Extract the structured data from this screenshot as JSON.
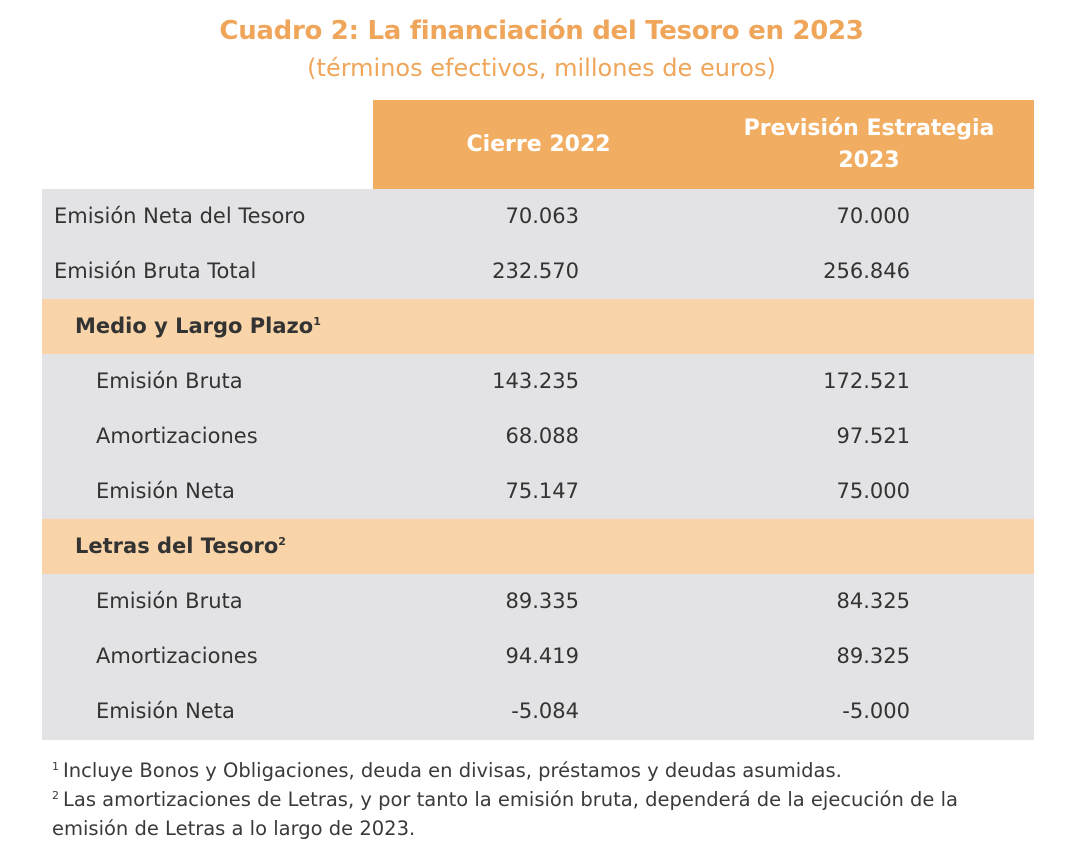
{
  "title": "Cuadro 2: La financiación del Tesoro en 2023",
  "subtitle": "(términos efectivos, millones de euros)",
  "table": {
    "columns": [
      "Cierre 2022",
      "Previsión Estrategia 2023"
    ],
    "rows": [
      {
        "label": "Emisión Neta del Tesoro",
        "v1": "70.063",
        "v2": "70.000"
      },
      {
        "label": "Emisión Bruta Total",
        "v1": "232.570",
        "v2": "256.846"
      },
      {
        "label": "Medio y Largo Plazo",
        "sup": "1"
      },
      {
        "label": "Emisión Bruta",
        "v1": "143.235",
        "v2": "172.521"
      },
      {
        "label": "Amortizaciones",
        "v1": "68.088",
        "v2": "97.521"
      },
      {
        "label": "Emisión Neta",
        "v1": "75.147",
        "v2": "75.000"
      },
      {
        "label": "Letras del Tesoro",
        "sup": "2"
      },
      {
        "label": "Emisión Bruta",
        "v1": "89.335",
        "v2": "84.325"
      },
      {
        "label": "Amortizaciones",
        "v1": "94.419",
        "v2": "89.325"
      },
      {
        "label": "Emisión Neta",
        "v1": "-5.084",
        "v2": "-5.000"
      }
    ]
  },
  "footnotes": [
    {
      "mark": "1",
      "text": "Incluye Bonos y Obligaciones, deuda en divisas, préstamos y deudas asumidas."
    },
    {
      "mark": "2",
      "text": "Las amortizaciones de Letras, y por tanto la emisión bruta, dependerá de la ejecución de la emisión de Letras a lo largo de 2023."
    }
  ],
  "colors": {
    "accent": "#efa65a",
    "header_fill": "#f1ae62",
    "band_fill": "#f8d4a8",
    "row_fill": "#e3e3e5"
  }
}
